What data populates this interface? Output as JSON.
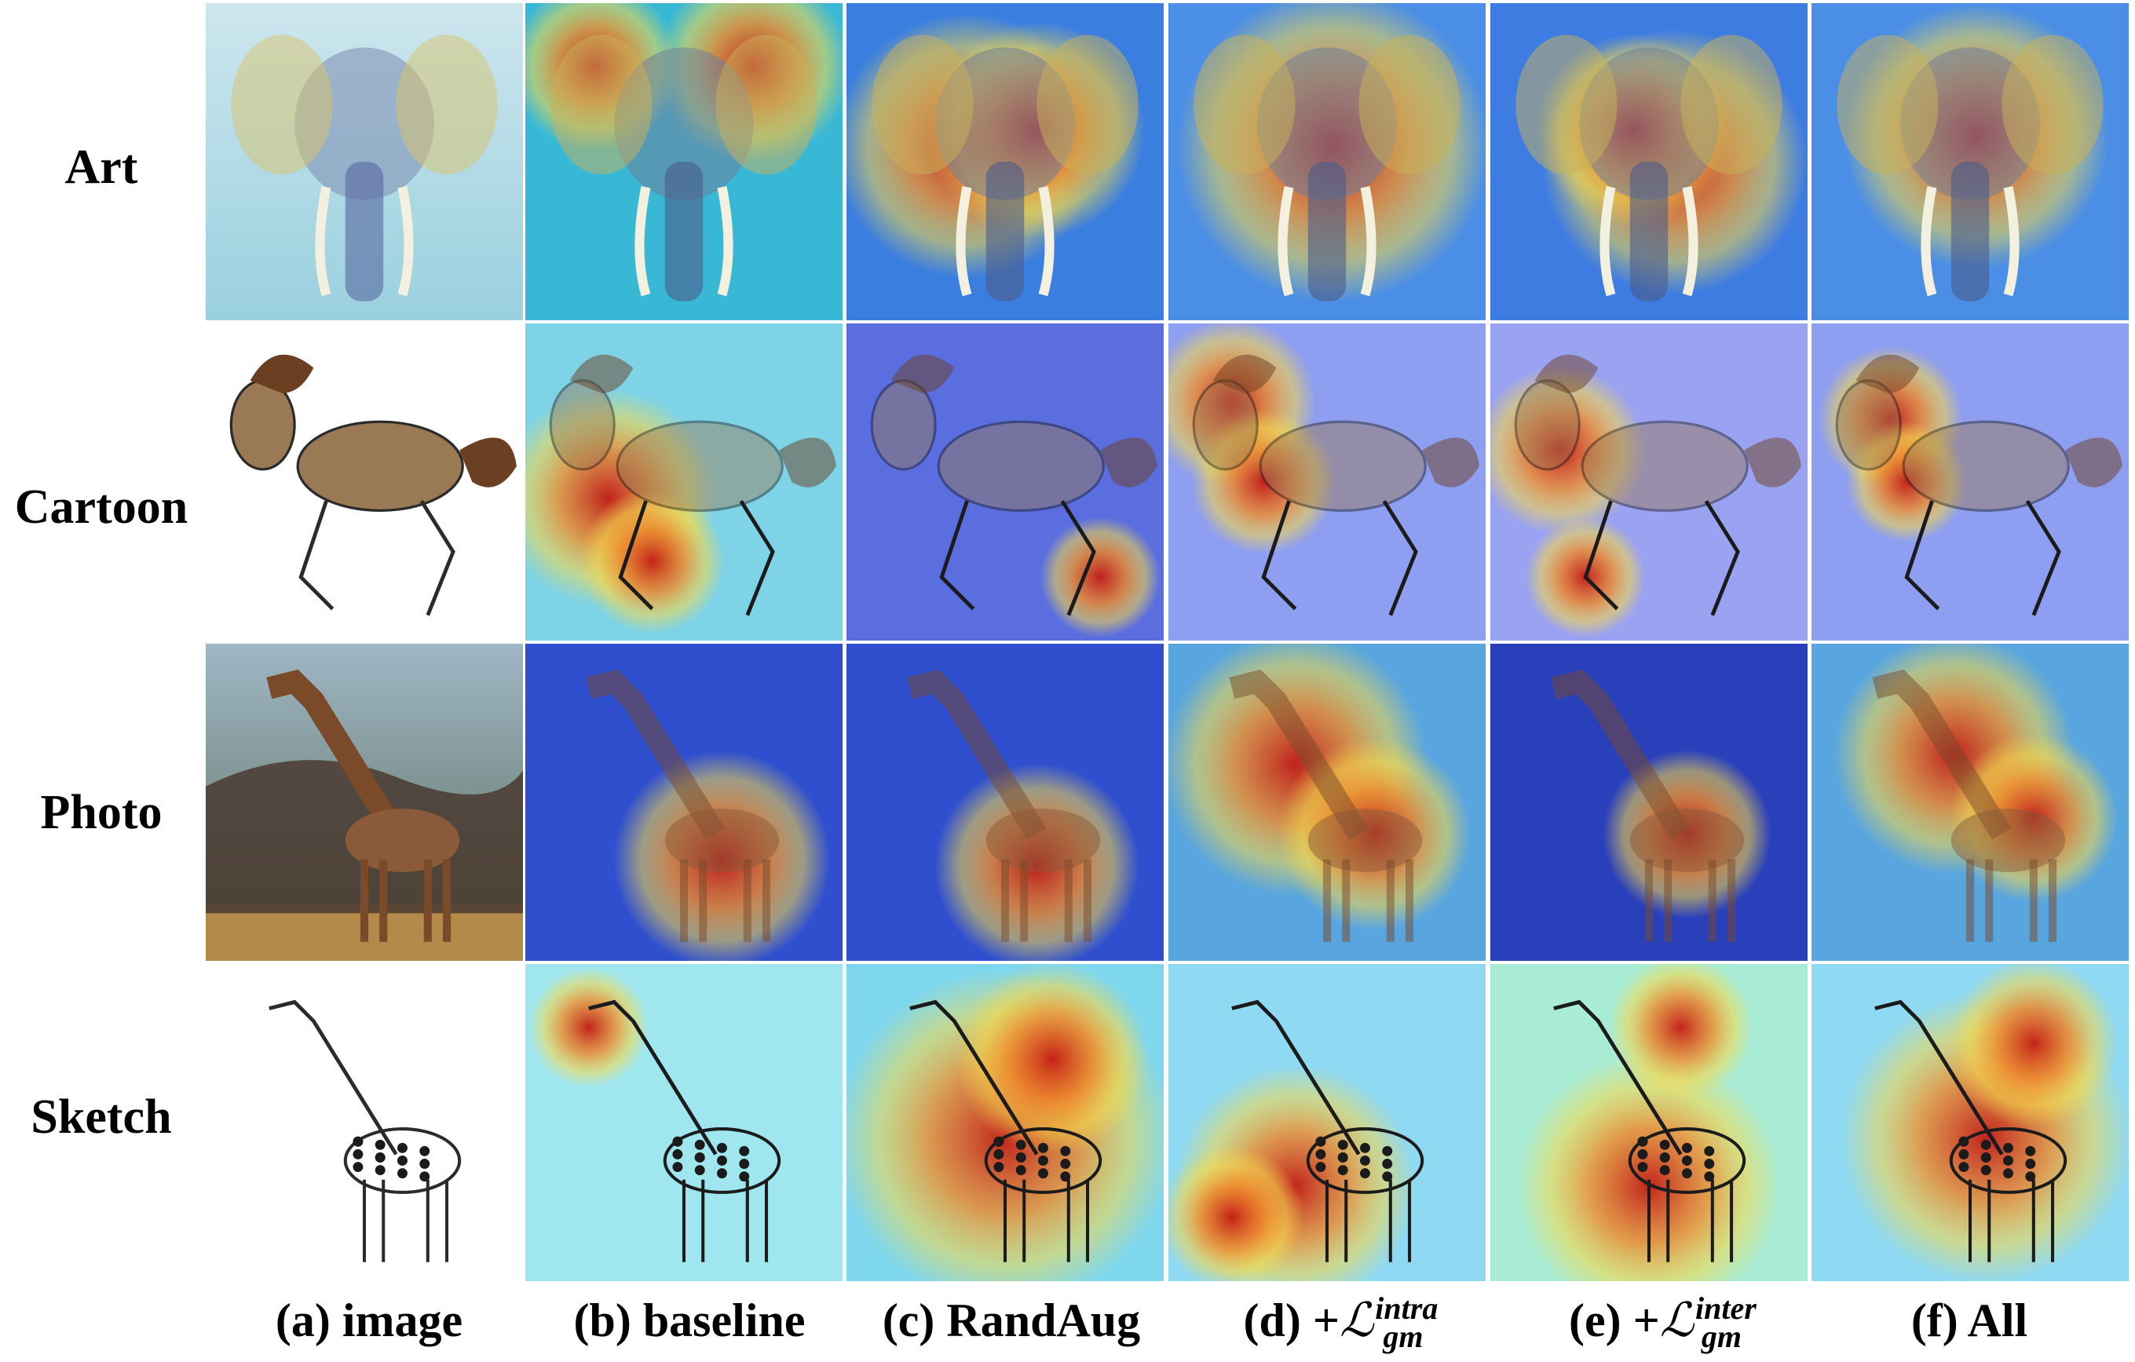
{
  "rows": [
    {
      "label": "Art",
      "subject": "elephant"
    },
    {
      "label": "Cartoon",
      "subject": "horse"
    },
    {
      "label": "Photo",
      "subject": "giraffe"
    },
    {
      "label": "Sketch",
      "subject": "giraffe"
    }
  ],
  "columns": [
    {
      "prefix": "(a)",
      "text": "image"
    },
    {
      "prefix": "(b)",
      "text": "baseline"
    },
    {
      "prefix": "(c)",
      "text": "RandAug"
    },
    {
      "prefix": "(d)",
      "text": "+",
      "symbol": "ℒ",
      "sup": "intra",
      "sub": "gm"
    },
    {
      "prefix": "(e)",
      "text": "+",
      "symbol": "ℒ",
      "sup": "inter",
      "sub": "gm"
    },
    {
      "prefix": "(f)",
      "text": "All"
    }
  ],
  "colors": {
    "heat_high": "#c41a12",
    "heat_mid": "#f6d94a",
    "heat_low": "#2a3fd6"
  }
}
